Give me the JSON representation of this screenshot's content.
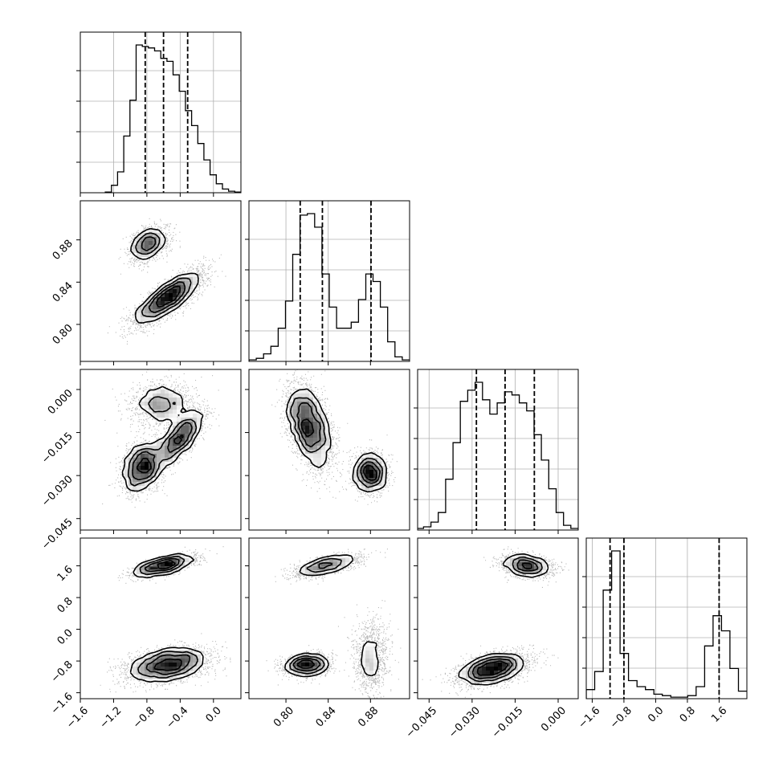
{
  "chart_data": {
    "type": "corner",
    "grid": true,
    "parameters": [
      {
        "range": [
          -1.6,
          0.33
        ],
        "ticks": [
          -1.6,
          -1.2,
          -0.8,
          -0.4,
          0.0
        ],
        "tick_labels": [
          "−1.6",
          "−1.2",
          "−0.8",
          "−0.4",
          "0.0"
        ],
        "quantiles": [
          -0.82,
          -0.6,
          -0.31
        ],
        "hist_min": -1.3,
        "hist_values": [
          0.005,
          0.05,
          0.14,
          0.38,
          0.62,
          0.99,
          0.98,
          0.97,
          0.95,
          0.9,
          0.88,
          0.79,
          0.68,
          0.55,
          0.45,
          0.33,
          0.22,
          0.12,
          0.06,
          0.025,
          0.01,
          0.005
        ]
      },
      {
        "range": [
          0.765,
          0.917
        ],
        "ticks": [
          0.8,
          0.84,
          0.88
        ],
        "tick_labels": [
          "0.80",
          "0.84",
          "0.88"
        ],
        "quantiles": [
          0.8135,
          0.8345,
          0.8805
        ],
        "hist_min": 0.765,
        "hist_values": [
          0.01,
          0.02,
          0.05,
          0.1,
          0.22,
          0.4,
          0.71,
          0.97,
          0.98,
          0.89,
          0.58,
          0.36,
          0.22,
          0.22,
          0.26,
          0.41,
          0.58,
          0.53,
          0.36,
          0.13,
          0.03,
          0.01
        ]
      },
      {
        "range": [
          -0.049,
          0.007
        ],
        "ticks": [
          -0.045,
          -0.03,
          -0.015,
          0.0
        ],
        "tick_labels": [
          "−0.045",
          "−0.030",
          "−0.015",
          "0.000"
        ],
        "quantiles": [
          -0.0285,
          -0.0185,
          -0.0083
        ],
        "hist_min": -0.0495,
        "hist_values": [
          0.01,
          0.02,
          0.05,
          0.11,
          0.32,
          0.55,
          0.81,
          0.88,
          0.93,
          0.82,
          0.73,
          0.8,
          0.87,
          0.85,
          0.8,
          0.75,
          0.6,
          0.44,
          0.26,
          0.11,
          0.03,
          0.01
        ]
      },
      {
        "range": [
          -1.75,
          2.3
        ],
        "ticks": [
          -1.6,
          -0.8,
          0.0,
          0.8,
          1.6
        ],
        "tick_labels": [
          "−1.6",
          "−0.8",
          "0.0",
          "0.8",
          "1.6"
        ],
        "quantiles": [
          -1.15,
          -0.8,
          1.6
        ],
        "hist_min": -1.75,
        "hist_values": [
          0.06,
          0.18,
          0.72,
          0.98,
          0.3,
          0.12,
          0.08,
          0.06,
          0.03,
          0.02,
          0.01,
          0.01,
          0.02,
          0.08,
          0.35,
          0.55,
          0.45,
          0.2,
          0.05
        ]
      }
    ],
    "scatter": {
      "seed": 7,
      "points_per_pair": 4200
    },
    "pairs": [
      {
        "row": 1,
        "col": 0,
        "clusters": [
          {
            "cx": -0.78,
            "cy": 0.876,
            "sx": 0.12,
            "sy": 0.0085,
            "rho": 0.35,
            "w": 0.3
          },
          {
            "cx": -0.55,
            "cy": 0.825,
            "sx": 0.21,
            "sy": 0.013,
            "rho": 0.82,
            "w": 0.7
          }
        ]
      },
      {
        "row": 2,
        "col": 0,
        "clusters": [
          {
            "cx": -0.6,
            "cy": -0.005,
            "sx": 0.2,
            "sy": 0.004,
            "rho": 0.0,
            "w": 0.28
          },
          {
            "cx": -0.85,
            "cy": -0.027,
            "sx": 0.13,
            "sy": 0.0045,
            "rho": 0.3,
            "w": 0.4
          },
          {
            "cx": -0.4,
            "cy": -0.017,
            "sx": 0.15,
            "sy": 0.005,
            "rho": 0.75,
            "w": 0.32
          }
        ]
      },
      {
        "row": 2,
        "col": 1,
        "clusters": [
          {
            "cx": 0.822,
            "cy": -0.013,
            "sx": 0.011,
            "sy": 0.0075,
            "rho": -0.45,
            "w": 0.68
          },
          {
            "cx": 0.88,
            "cy": -0.029,
            "sx": 0.0085,
            "sy": 0.0035,
            "rho": 0.0,
            "w": 0.32
          }
        ]
      },
      {
        "row": 3,
        "col": 0,
        "clusters": [
          {
            "cx": -0.6,
            "cy": 1.6,
            "sx": 0.2,
            "sy": 0.14,
            "rho": 0.7,
            "w": 0.32
          },
          {
            "cx": -0.55,
            "cy": -0.9,
            "sx": 0.25,
            "sy": 0.22,
            "rho": 0.35,
            "w": 0.68
          }
        ]
      },
      {
        "row": 3,
        "col": 1,
        "clusters": [
          {
            "cx": 0.838,
            "cy": 1.6,
            "sx": 0.016,
            "sy": 0.14,
            "rho": 0.65,
            "w": 0.32
          },
          {
            "cx": 0.82,
            "cy": -0.9,
            "sx": 0.011,
            "sy": 0.14,
            "rho": 0.1,
            "w": 0.4
          },
          {
            "cx": 0.88,
            "cy": -0.7,
            "sx": 0.008,
            "sy": 0.45,
            "rho": 0.0,
            "w": 0.28
          }
        ]
      },
      {
        "row": 3,
        "col": 2,
        "clusters": [
          {
            "cx": -0.011,
            "cy": 1.6,
            "sx": 0.0045,
            "sy": 0.15,
            "rho": -0.25,
            "w": 0.32
          },
          {
            "cx": -0.023,
            "cy": -1.0,
            "sx": 0.006,
            "sy": 0.2,
            "rho": 0.45,
            "w": 0.68
          }
        ]
      }
    ]
  }
}
